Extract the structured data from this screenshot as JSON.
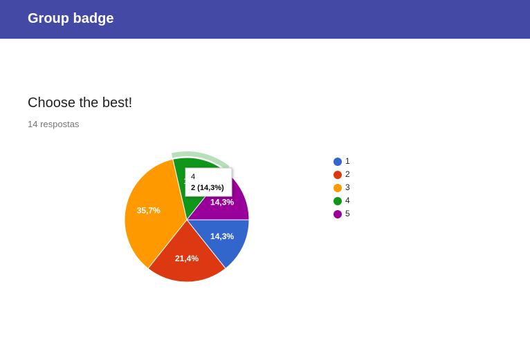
{
  "header": {
    "title": "Group badge"
  },
  "question": {
    "title": "Choose the best!",
    "responses": "14 respostas"
  },
  "chart_data": {
    "type": "pie",
    "categories": [
      "1",
      "2",
      "3",
      "4",
      "5"
    ],
    "values": [
      14.3,
      21.4,
      35.7,
      14.3,
      14.3
    ],
    "value_labels": [
      "14,3%",
      "21,4%",
      "35,7%",
      "14,3%",
      "14,3%"
    ],
    "colors": [
      "#3366cc",
      "#dc3912",
      "#ff9900",
      "#109618",
      "#990099"
    ],
    "tooltip": {
      "label": "4",
      "text": "2 (14,3%)"
    }
  }
}
